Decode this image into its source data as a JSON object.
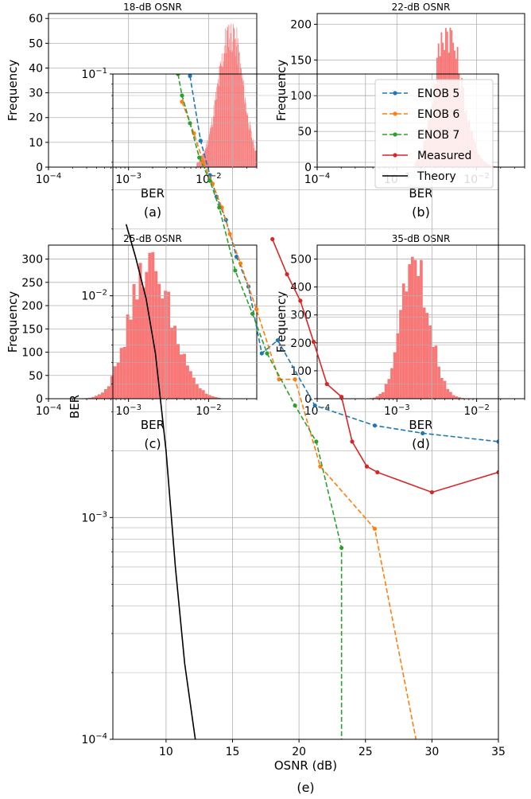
{
  "chart_data": [
    {
      "id": "a",
      "type": "bar",
      "title": "18-dB OSNR",
      "xlabel": "BER",
      "ylabel": "Frequency",
      "caption": "(a)",
      "xscale": "log",
      "xlim": [
        0.0001,
        0.04
      ],
      "ylim": [
        0,
        62
      ],
      "yticks": [
        0,
        10,
        20,
        30,
        40,
        50,
        60
      ],
      "xticks": [
        {
          "value": 0.0001,
          "label": "10",
          "exp": "−4"
        },
        {
          "value": 0.001,
          "label": "10",
          "exp": "−3"
        },
        {
          "value": 0.01,
          "label": "10",
          "exp": "−2"
        }
      ],
      "grid": true,
      "color": "#f87878",
      "dist": {
        "log_center": -1.72,
        "spread_left": 0.16,
        "spread_right": 0.15,
        "peak": 59,
        "log_min": -2.15,
        "log_max": -1.4,
        "bins": 120
      }
    },
    {
      "id": "b",
      "type": "bar",
      "title": "22-dB OSNR",
      "xlabel": "BER",
      "ylabel": "Frequency",
      "caption": "(b)",
      "xscale": "log",
      "xlim": [
        0.0001,
        0.04
      ],
      "ylim": [
        0,
        215
      ],
      "yticks": [
        0,
        50,
        100,
        150,
        200
      ],
      "xticks": [
        {
          "value": 0.0001,
          "label": "10",
          "exp": "−4"
        },
        {
          "value": 0.001,
          "label": "10",
          "exp": "−3"
        },
        {
          "value": 0.01,
          "label": "10",
          "exp": "−2"
        }
      ],
      "grid": true,
      "color": "#f87878",
      "dist": {
        "log_center": -2.38,
        "spread_left": 0.15,
        "spread_right": 0.19,
        "peak": 207,
        "log_min": -2.78,
        "log_max": -1.68,
        "bins": 60
      }
    },
    {
      "id": "c",
      "type": "bar",
      "title": "25-dB OSNR",
      "xlabel": "BER",
      "ylabel": "Frequency",
      "caption": "(c)",
      "xscale": "log",
      "xlim": [
        0.0001,
        0.04
      ],
      "ylim": [
        0,
        330
      ],
      "yticks": [
        0,
        50,
        100,
        150,
        200,
        250,
        300
      ],
      "xticks": [
        {
          "value": 0.0001,
          "label": "10",
          "exp": "−4"
        },
        {
          "value": 0.001,
          "label": "10",
          "exp": "−3"
        },
        {
          "value": 0.01,
          "label": "10",
          "exp": "−2"
        }
      ],
      "grid": true,
      "color": "#f87878",
      "dist": {
        "log_center": -2.74,
        "spread_left": 0.24,
        "spread_right": 0.28,
        "peak": 317,
        "log_min": -3.62,
        "log_max": -1.85,
        "bins": 45
      }
    },
    {
      "id": "d",
      "type": "bar",
      "title": "35-dB OSNR",
      "xlabel": "BER",
      "ylabel": "Frequency",
      "caption": "(d)",
      "xscale": "log",
      "xlim": [
        0.0001,
        0.04
      ],
      "ylim": [
        0,
        550
      ],
      "yticks": [
        0,
        100,
        200,
        300,
        400,
        500
      ],
      "xticks": [
        {
          "value": 0.0001,
          "label": "10",
          "exp": "−4"
        },
        {
          "value": 0.001,
          "label": "10",
          "exp": "−3"
        },
        {
          "value": 0.01,
          "label": "10",
          "exp": "−2"
        }
      ],
      "grid": true,
      "color": "#f87878",
      "dist": {
        "log_center": -2.79,
        "spread_left": 0.16,
        "spread_right": 0.19,
        "peak": 523,
        "log_min": -3.45,
        "log_max": -2.05,
        "bins": 38
      }
    },
    {
      "id": "e",
      "type": "line",
      "xlabel": "OSNR (dB)",
      "ylabel": "BER",
      "caption": "(e)",
      "xlim": [
        6,
        35
      ],
      "ylim": [
        0.0001,
        0.1
      ],
      "yscale": "log",
      "xticks": [
        10,
        15,
        20,
        25,
        30,
        35
      ],
      "yticks": [
        {
          "value": 0.0001,
          "label": "10",
          "exp": "−4"
        },
        {
          "value": 0.001,
          "label": "10",
          "exp": "−3"
        },
        {
          "value": 0.01,
          "label": "10",
          "exp": "−2"
        },
        {
          "value": 0.1,
          "label": "10",
          "exp": "−1"
        }
      ],
      "grid": true,
      "legend": "top-right",
      "series": [
        {
          "name": "ENOB 5",
          "color": "#1f77b4",
          "dash": true,
          "markers": true,
          "x": [
            11.8,
            12.6,
            13.3,
            13.8,
            14.5,
            15.3,
            16.2,
            17.2,
            18.4,
            21.2,
            25.7,
            29.3,
            35
          ],
          "y": [
            0.098,
            0.05,
            0.035,
            0.028,
            0.022,
            0.015,
            0.011,
            0.0055,
            0.0063,
            0.0032,
            0.0026,
            0.0024,
            0.0022
          ]
        },
        {
          "name": "ENOB 6",
          "color": "#ff7f0e",
          "dash": true,
          "markers": true,
          "x": [
            11.2,
            12.1,
            12.8,
            13.5,
            14.2,
            14.8,
            15.6,
            16.8,
            18.5,
            19.7,
            21.6,
            25.7,
            28.8
          ],
          "y": [
            0.075,
            0.054,
            0.04,
            0.032,
            0.025,
            0.019,
            0.014,
            0.0087,
            0.0042,
            0.0042,
            0.0017,
            0.00089,
            0.0001
          ]
        },
        {
          "name": "ENOB 7",
          "color": "#2ca02c",
          "dash": true,
          "markers": true,
          "x": [
            10.9,
            11.2,
            11.8,
            12.5,
            13.3,
            14.0,
            15.2,
            16.5,
            17.6,
            19.7,
            21.3,
            23.2,
            23.2
          ],
          "y": [
            0.1,
            0.08,
            0.06,
            0.042,
            0.033,
            0.025,
            0.013,
            0.0083,
            0.0055,
            0.0032,
            0.0022,
            0.00073,
            0.0001
          ]
        },
        {
          "name": "Measured",
          "color": "#d62728",
          "dash": false,
          "markers": true,
          "x": [
            18,
            19.1,
            20.1,
            21.1,
            22.1,
            23.2,
            24.0,
            25.1,
            25.9,
            30.0,
            35
          ],
          "y": [
            0.018,
            0.0125,
            0.0095,
            0.0062,
            0.004,
            0.0035,
            0.0022,
            0.0017,
            0.0016,
            0.0013,
            0.0016
          ]
        },
        {
          "name": "Theory",
          "color": "#000000",
          "dash": false,
          "markers": false,
          "x": [
            7.0,
            7.7,
            8.5,
            9.2,
            10.0,
            10.7,
            11.4,
            12.2
          ],
          "y": [
            0.021,
            0.015,
            0.0097,
            0.0055,
            0.002,
            0.0006,
            0.00022,
            0.0001
          ]
        }
      ]
    }
  ]
}
